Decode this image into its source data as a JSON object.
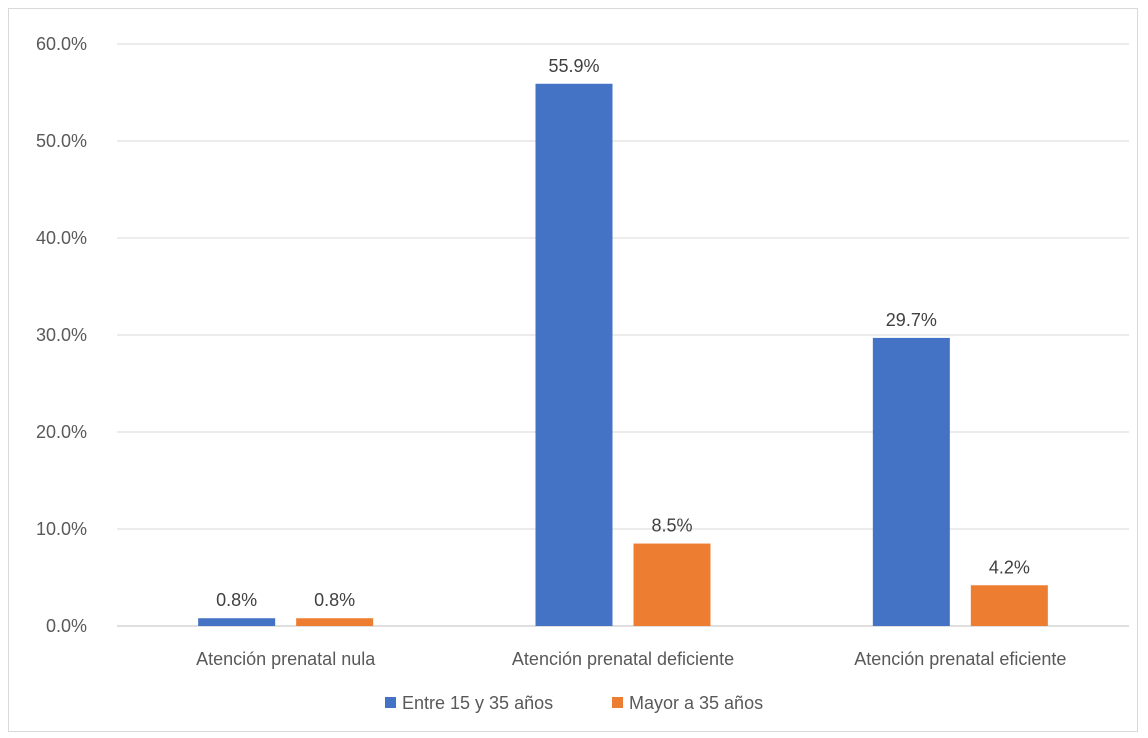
{
  "chart_data": {
    "type": "bar",
    "title": "",
    "xlabel": "",
    "ylabel": "",
    "categories": [
      "Atención prenatal nula",
      "Atención prenatal deficiente",
      "Atención prenatal eficiente"
    ],
    "series": [
      {
        "name": "Entre 15 y 35 años",
        "color": "#4472c4",
        "values": [
          0.8,
          55.9,
          29.7
        ],
        "labels": [
          "0.8%",
          "55.9%",
          "29.7%"
        ]
      },
      {
        "name": "Mayor a 35 años",
        "color": "#ed7d31",
        "values": [
          0.8,
          8.5,
          4.2
        ],
        "labels": [
          "0.8%",
          "8.5%",
          "4.2%"
        ]
      }
    ],
    "ylim": [
      0,
      60
    ],
    "yticks": [
      0,
      10,
      20,
      30,
      40,
      50,
      60
    ],
    "ytick_labels": [
      "0.0%",
      "10.0%",
      "20.0%",
      "30.0%",
      "40.0%",
      "50.0%",
      "60.0%"
    ],
    "grid": true,
    "legend_position": "bottom"
  }
}
